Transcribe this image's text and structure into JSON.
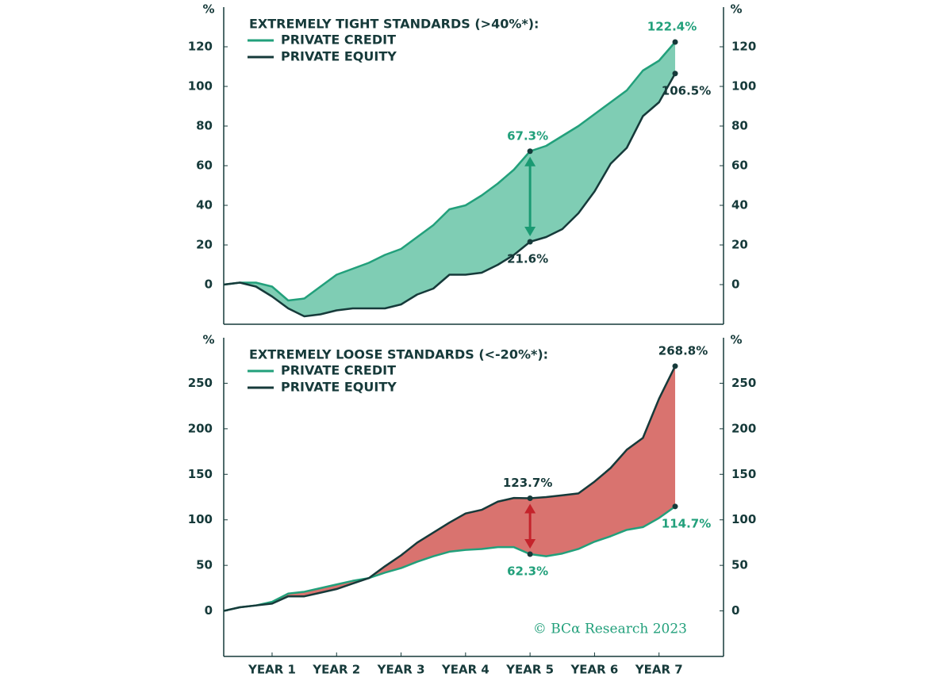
{
  "chart_data": [
    {
      "type": "line",
      "fill_between": true,
      "fill_color": "#7fcdb4",
      "arrow_color": "#1a9a72",
      "legend_title": "EXTREMELY TIGHT STANDARDS (>40%*):",
      "y_unit": "%",
      "x": [
        0.25,
        0.5,
        0.75,
        1,
        1.25,
        1.5,
        1.75,
        2,
        2.25,
        2.5,
        2.75,
        3,
        3.25,
        3.5,
        3.75,
        4,
        4.25,
        4.5,
        4.75,
        5,
        5.25,
        5.5,
        5.75,
        6,
        6.25,
        6.5,
        6.75,
        7,
        7.25
      ],
      "xlim": [
        0.25,
        8
      ],
      "ylim": [
        -20,
        140
      ],
      "yticks": [
        0,
        20,
        40,
        60,
        80,
        100,
        120
      ],
      "series": [
        {
          "name": "PRIVATE CREDIT",
          "color": "#22a07b",
          "values": [
            0,
            1,
            1,
            -1,
            -8,
            -7,
            -1,
            5,
            8,
            11,
            15,
            18,
            24,
            30,
            38,
            40,
            45,
            51,
            58,
            67.3,
            70,
            75,
            80,
            86,
            92,
            98,
            108,
            113,
            122.4
          ],
          "value_labels": [
            null,
            null,
            null,
            null,
            null,
            null,
            null,
            null,
            null,
            null,
            null,
            null,
            null,
            null,
            null,
            null,
            null,
            null,
            null,
            "67.3%",
            null,
            null,
            null,
            null,
            null,
            null,
            null,
            null,
            "122.4%"
          ]
        },
        {
          "name": "PRIVATE EQUITY",
          "color": "#163a3a",
          "values": [
            0,
            1,
            -1,
            -6,
            -12,
            -16,
            -15,
            -13,
            -12,
            -12,
            -12,
            -10,
            -5,
            -2,
            5,
            5,
            6,
            10,
            15,
            21.6,
            24,
            28,
            36,
            47,
            61,
            69,
            85,
            92,
            106.5
          ],
          "value_labels": [
            null,
            null,
            null,
            null,
            null,
            null,
            null,
            null,
            null,
            null,
            null,
            null,
            null,
            null,
            null,
            null,
            null,
            null,
            null,
            "21.6%",
            null,
            null,
            null,
            null,
            null,
            null,
            null,
            null,
            "106.5%"
          ]
        }
      ]
    },
    {
      "type": "line",
      "fill_between": true,
      "fill_color": "#d9736f",
      "arrow_color": "#c4232b",
      "legend_title": "EXTREMELY LOOSE STANDARDS (<-20%*):",
      "y_unit": "%",
      "watermark": "© BCα Research 2023",
      "x": [
        0.25,
        0.5,
        0.75,
        1,
        1.25,
        1.5,
        1.75,
        2,
        2.25,
        2.5,
        2.75,
        3,
        3.25,
        3.5,
        3.75,
        4,
        4.25,
        4.5,
        4.75,
        5,
        5.25,
        5.5,
        5.75,
        6,
        6.25,
        6.5,
        6.75,
        7,
        7.25
      ],
      "xlim": [
        0.25,
        8
      ],
      "ylim": [
        -50,
        300
      ],
      "yticks": [
        0,
        50,
        100,
        150,
        200,
        250
      ],
      "xticks": [
        {
          "value": 1,
          "label": "YEAR 1"
        },
        {
          "value": 2,
          "label": "YEAR 2"
        },
        {
          "value": 3,
          "label": "YEAR 3"
        },
        {
          "value": 4,
          "label": "YEAR 4"
        },
        {
          "value": 5,
          "label": "YEAR 5"
        },
        {
          "value": 6,
          "label": "YEAR 6"
        },
        {
          "value": 7,
          "label": "YEAR 7"
        }
      ],
      "series": [
        {
          "name": "PRIVATE CREDIT",
          "color": "#22a07b",
          "values": [
            0,
            4,
            6,
            10,
            19,
            21,
            25,
            29,
            33,
            36,
            42,
            47,
            54,
            60,
            65,
            67,
            68,
            70,
            70,
            62.3,
            60,
            63,
            68,
            76,
            82,
            89,
            92,
            102,
            114.7
          ],
          "value_labels": [
            null,
            null,
            null,
            null,
            null,
            null,
            null,
            null,
            null,
            null,
            null,
            null,
            null,
            null,
            null,
            null,
            null,
            null,
            null,
            "62.3%",
            null,
            null,
            null,
            null,
            null,
            null,
            null,
            null,
            "114.7%"
          ]
        },
        {
          "name": "PRIVATE EQUITY",
          "color": "#163a3a",
          "values": [
            0,
            4,
            6,
            8,
            16,
            16,
            20,
            24,
            30,
            36,
            49,
            61,
            75,
            86,
            97,
            107,
            111,
            120,
            124,
            123.7,
            125,
            127,
            129,
            142,
            157,
            177,
            190,
            233,
            268.8
          ],
          "value_labels": [
            null,
            null,
            null,
            null,
            null,
            null,
            null,
            null,
            null,
            null,
            null,
            null,
            null,
            null,
            null,
            null,
            null,
            null,
            null,
            "123.7%",
            null,
            null,
            null,
            null,
            null,
            null,
            null,
            null,
            "268.8%"
          ]
        }
      ]
    }
  ]
}
